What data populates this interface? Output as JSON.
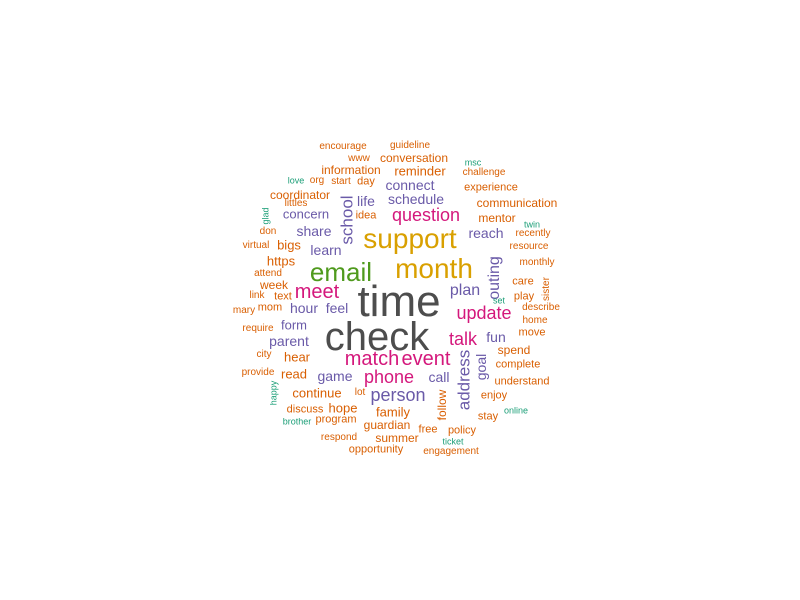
{
  "colors": {
    "c1": "#4d4d4d",
    "c2": "#d9a000",
    "c3": "#4f9a1d",
    "c4": "#d4187c",
    "c5": "#6a5aa8",
    "c6": "#d95f02",
    "c7": "#1b9e77"
  },
  "words": [
    {
      "text": "time",
      "size": 44,
      "color": "c1"
    },
    {
      "text": "check",
      "size": 40,
      "color": "c1"
    },
    {
      "text": "support",
      "size": 28,
      "color": "c2"
    },
    {
      "text": "month",
      "size": 28,
      "color": "c2"
    },
    {
      "text": "email",
      "size": 26,
      "color": "c3"
    },
    {
      "text": "match",
      "size": 20,
      "color": "c4"
    },
    {
      "text": "event",
      "size": 20,
      "color": "c4"
    },
    {
      "text": "meet",
      "size": 20,
      "color": "c4"
    },
    {
      "text": "question",
      "size": 18,
      "color": "c4"
    },
    {
      "text": "update",
      "size": 18,
      "color": "c4"
    },
    {
      "text": "phone",
      "size": 18,
      "color": "c4"
    },
    {
      "text": "talk",
      "size": 18,
      "color": "c4"
    },
    {
      "text": "person",
      "size": 18,
      "color": "c5"
    },
    {
      "text": "school",
      "size": 17,
      "color": "c5"
    },
    {
      "text": "address",
      "size": 17,
      "color": "c5"
    },
    {
      "text": "outing",
      "size": 16,
      "color": "c5"
    },
    {
      "text": "plan",
      "size": 16,
      "color": "c5"
    },
    {
      "text": "connect",
      "size": 14,
      "color": "c5"
    },
    {
      "text": "schedule",
      "size": 14,
      "color": "c5"
    },
    {
      "text": "life",
      "size": 14,
      "color": "c5"
    },
    {
      "text": "share",
      "size": 14,
      "color": "c5"
    },
    {
      "text": "concern",
      "size": 13,
      "color": "c5"
    },
    {
      "text": "learn",
      "size": 14,
      "color": "c5"
    },
    {
      "text": "reach",
      "size": 14,
      "color": "c5"
    },
    {
      "text": "hour",
      "size": 14,
      "color": "c5"
    },
    {
      "text": "feel",
      "size": 14,
      "color": "c5"
    },
    {
      "text": "form",
      "size": 13,
      "color": "c5"
    },
    {
      "text": "parent",
      "size": 14,
      "color": "c5"
    },
    {
      "text": "fun",
      "size": 14,
      "color": "c5"
    },
    {
      "text": "game",
      "size": 14,
      "color": "c5"
    },
    {
      "text": "call",
      "size": 14,
      "color": "c5"
    },
    {
      "text": "goal",
      "size": 14,
      "color": "c5"
    },
    {
      "text": "reminder",
      "size": 13,
      "color": "c6"
    },
    {
      "text": "information",
      "size": 12,
      "color": "c6"
    },
    {
      "text": "conversation",
      "size": 12,
      "color": "c6"
    },
    {
      "text": "coordinator",
      "size": 12,
      "color": "c6"
    },
    {
      "text": "mentor",
      "size": 12,
      "color": "c6"
    },
    {
      "text": "communication",
      "size": 12,
      "color": "c6"
    },
    {
      "text": "experience",
      "size": 11,
      "color": "c6"
    },
    {
      "text": "challenge",
      "size": 10,
      "color": "c6"
    },
    {
      "text": "guideline",
      "size": 10,
      "color": "c6"
    },
    {
      "text": "encourage",
      "size": 10,
      "color": "c6"
    },
    {
      "text": "www",
      "size": 10,
      "color": "c6"
    },
    {
      "text": "day",
      "size": 11,
      "color": "c6"
    },
    {
      "text": "start",
      "size": 10,
      "color": "c6"
    },
    {
      "text": "org",
      "size": 10,
      "color": "c6"
    },
    {
      "text": "idea",
      "size": 11,
      "color": "c6"
    },
    {
      "text": "bigs",
      "size": 13,
      "color": "c6"
    },
    {
      "text": "https",
      "size": 13,
      "color": "c6"
    },
    {
      "text": "week",
      "size": 12,
      "color": "c6"
    },
    {
      "text": "text",
      "size": 11,
      "color": "c6"
    },
    {
      "text": "mom",
      "size": 11,
      "color": "c6"
    },
    {
      "text": "link",
      "size": 10,
      "color": "c6"
    },
    {
      "text": "attend",
      "size": 10,
      "color": "c6"
    },
    {
      "text": "virtual",
      "size": 10,
      "color": "c6"
    },
    {
      "text": "don",
      "size": 10,
      "color": "c6"
    },
    {
      "text": "littles",
      "size": 10,
      "color": "c6"
    },
    {
      "text": "mary",
      "size": 10,
      "color": "c6"
    },
    {
      "text": "require",
      "size": 10,
      "color": "c6"
    },
    {
      "text": "city",
      "size": 10,
      "color": "c6"
    },
    {
      "text": "provide",
      "size": 10,
      "color": "c6"
    },
    {
      "text": "hear",
      "size": 13,
      "color": "c6"
    },
    {
      "text": "read",
      "size": 13,
      "color": "c6"
    },
    {
      "text": "continue",
      "size": 13,
      "color": "c6"
    },
    {
      "text": "discuss",
      "size": 11,
      "color": "c6"
    },
    {
      "text": "hope",
      "size": 13,
      "color": "c6"
    },
    {
      "text": "lot",
      "size": 10,
      "color": "c6"
    },
    {
      "text": "program",
      "size": 11,
      "color": "c6"
    },
    {
      "text": "family",
      "size": 13,
      "color": "c6"
    },
    {
      "text": "guardian",
      "size": 12,
      "color": "c6"
    },
    {
      "text": "respond",
      "size": 10,
      "color": "c6"
    },
    {
      "text": "summer",
      "size": 12,
      "color": "c6"
    },
    {
      "text": "opportunity",
      "size": 11,
      "color": "c6"
    },
    {
      "text": "free",
      "size": 11,
      "color": "c6"
    },
    {
      "text": "follow",
      "size": 12,
      "color": "c6"
    },
    {
      "text": "policy",
      "size": 11,
      "color": "c6"
    },
    {
      "text": "engagement",
      "size": 10,
      "color": "c6"
    },
    {
      "text": "stay",
      "size": 11,
      "color": "c6"
    },
    {
      "text": "enjoy",
      "size": 11,
      "color": "c6"
    },
    {
      "text": "understand",
      "size": 11,
      "color": "c6"
    },
    {
      "text": "complete",
      "size": 11,
      "color": "c6"
    },
    {
      "text": "spend",
      "size": 12,
      "color": "c6"
    },
    {
      "text": "move",
      "size": 11,
      "color": "c6"
    },
    {
      "text": "home",
      "size": 10,
      "color": "c6"
    },
    {
      "text": "describe",
      "size": 10,
      "color": "c6"
    },
    {
      "text": "play",
      "size": 11,
      "color": "c6"
    },
    {
      "text": "care",
      "size": 11,
      "color": "c6"
    },
    {
      "text": "monthly",
      "size": 10,
      "color": "c6"
    },
    {
      "text": "resource",
      "size": 10,
      "color": "c6"
    },
    {
      "text": "recently",
      "size": 10,
      "color": "c6"
    },
    {
      "text": "sister",
      "size": 10,
      "color": "c6"
    },
    {
      "text": "msc",
      "size": 9,
      "color": "c7"
    },
    {
      "text": "love",
      "size": 9,
      "color": "c7"
    },
    {
      "text": "glad",
      "size": 9,
      "color": "c7"
    },
    {
      "text": "twin",
      "size": 9,
      "color": "c7"
    },
    {
      "text": "set",
      "size": 9,
      "color": "c7"
    },
    {
      "text": "happy",
      "size": 9,
      "color": "c7"
    },
    {
      "text": "brother",
      "size": 9,
      "color": "c7"
    },
    {
      "text": "ticket",
      "size": 9,
      "color": "c7"
    },
    {
      "text": "online",
      "size": 9,
      "color": "c7"
    }
  ]
}
